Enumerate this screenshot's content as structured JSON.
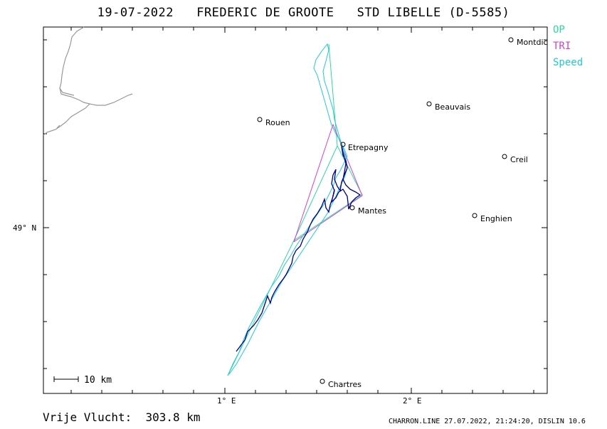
{
  "title": "19-07-2022   FREDERIC DE GROOTE   STD LIBELLE (D-5585)",
  "legend": [
    {
      "label": "OP",
      "color": "#2fd8a0"
    },
    {
      "label": "TRI",
      "color": "#d040d0"
    },
    {
      "label": "Speed",
      "color": "#20c8d8"
    }
  ],
  "axes": {
    "x_ticks": [
      {
        "label": "1° E"
      },
      {
        "label": "2° E"
      }
    ],
    "y_ticks": [
      {
        "label": "49° N"
      }
    ]
  },
  "scale_bar": {
    "label": "10 km"
  },
  "cities": [
    {
      "name": "Montdidier",
      "label": "Montdic"
    },
    {
      "name": "Beauvais",
      "label": "Beauvais"
    },
    {
      "name": "Rouen",
      "label": "Rouen"
    },
    {
      "name": "Etrepagny",
      "label": "Etrepagny"
    },
    {
      "name": "Creil",
      "label": "Creil"
    },
    {
      "name": "Mantes",
      "label": "Mantes"
    },
    {
      "name": "Enghien",
      "label": "Enghien"
    },
    {
      "name": "Chartres",
      "label": "Chartres"
    }
  ],
  "footer": {
    "distance": "Vrije Vlucht:  303.8 km",
    "credit": "CHARRON.LINE 27.07.2022, 21:24:20, DISLIN 10.6"
  },
  "colors": {
    "track": "#000080",
    "coast": "#999999",
    "op": "#2fd8a0",
    "tri": "#d040d0",
    "speed": "#20c8d8"
  }
}
